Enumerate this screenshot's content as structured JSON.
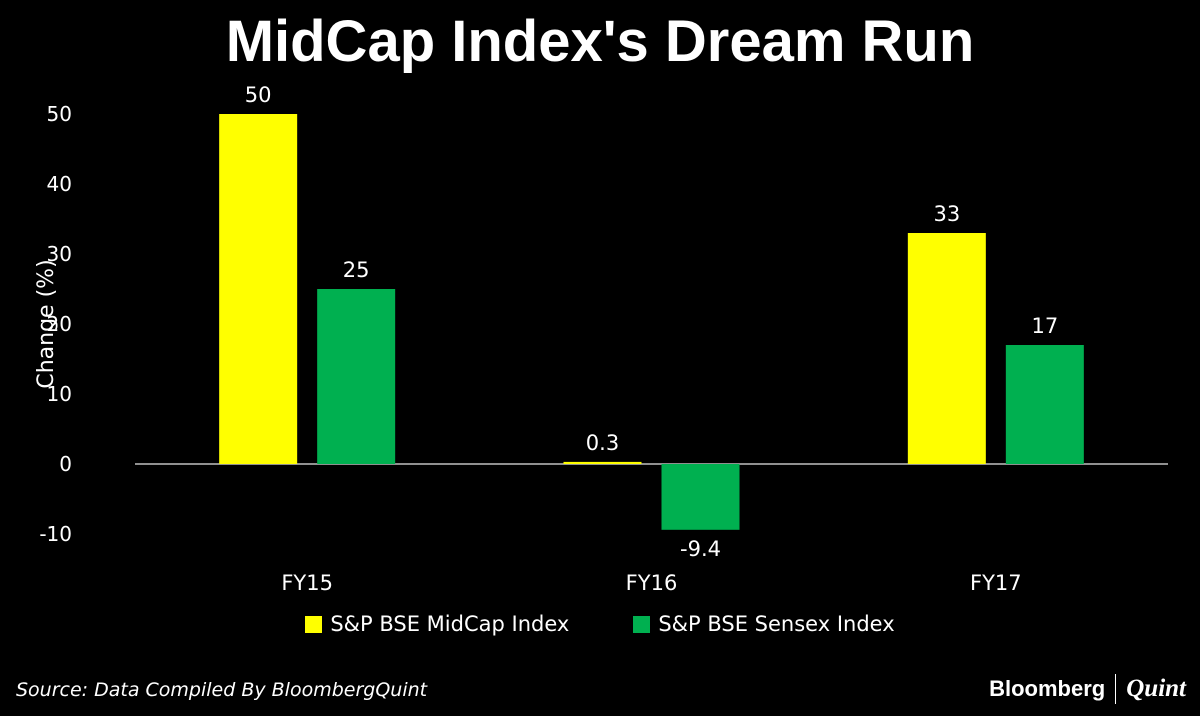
{
  "title": "MidCap Index's Dream Run",
  "source": "Source: Data Compiled By BloombergQuint",
  "brand": {
    "left": "Bloomberg",
    "right": "Quint"
  },
  "chart_data": {
    "type": "bar",
    "title": "MidCap Index's Dream Run",
    "xlabel": "",
    "ylabel": "Change (%)",
    "ylim": [
      -10,
      50
    ],
    "yticks": [
      50,
      40,
      30,
      20,
      10,
      0,
      -10
    ],
    "categories": [
      "FY15",
      "FY16",
      "FY17"
    ],
    "series": [
      {
        "name": "S&P BSE MidCap Index",
        "color": "#ffff00",
        "values": [
          50,
          0.3,
          33
        ],
        "labels": [
          "50",
          "0.3",
          "33"
        ]
      },
      {
        "name": "S&P BSE Sensex Index",
        "color": "#00b050",
        "values": [
          25,
          -9.4,
          17
        ],
        "labels": [
          "25",
          "-9.4",
          "17"
        ]
      }
    ],
    "legend_position": "bottom"
  }
}
